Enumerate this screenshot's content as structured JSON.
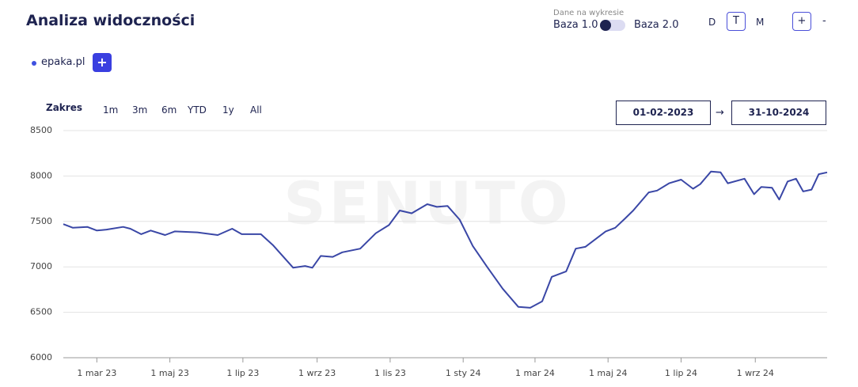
{
  "header": {
    "title": "Analiza widoczności",
    "data_source_label": "Dane na wykresie",
    "option_left": "Baza 1.0",
    "option_right": "Baza 2.0",
    "granularity": [
      "D",
      "T",
      "M"
    ],
    "zoom_in": "+",
    "zoom_out": "-"
  },
  "legend_add": "+",
  "range": {
    "label": "Zakres",
    "options": [
      "1m",
      "3m",
      "6m",
      "YTD",
      "1y",
      "All"
    ],
    "from": "01-02-2023",
    "to": "31-10-2024"
  },
  "watermark": "SENUTO",
  "chart_data": {
    "type": "line",
    "x": [
      "2023-02-01",
      "2023-02-09",
      "2023-02-21",
      "2023-03-01",
      "2023-03-09",
      "2023-03-23",
      "2023-03-29",
      "2023-04-07",
      "2023-04-15",
      "2023-04-27",
      "2023-05-05",
      "2023-05-24",
      "2023-06-10",
      "2023-06-22",
      "2023-06-30",
      "2023-07-16",
      "2023-07-26",
      "2023-08-12",
      "2023-08-22",
      "2023-08-28",
      "2023-09-04",
      "2023-09-14",
      "2023-09-22",
      "2023-10-07",
      "2023-10-20",
      "2023-10-31",
      "2023-11-09",
      "2023-11-19",
      "2023-12-02",
      "2023-12-10",
      "2023-12-19",
      "2023-12-29",
      "2024-01-09",
      "2024-01-21",
      "2024-02-03",
      "2024-02-16",
      "2024-02-26",
      "2024-03-07",
      "2024-03-15",
      "2024-03-27",
      "2024-04-04",
      "2024-04-12",
      "2024-04-29",
      "2024-05-07",
      "2024-05-15",
      "2024-05-22",
      "2024-06-04",
      "2024-06-11",
      "2024-06-21",
      "2024-07-01",
      "2024-07-11",
      "2024-07-17",
      "2024-07-26",
      "2024-08-03",
      "2024-08-09",
      "2024-08-23",
      "2024-08-31",
      "2024-09-06",
      "2024-09-15",
      "2024-09-21",
      "2024-09-28",
      "2024-10-05",
      "2024-10-11",
      "2024-10-18",
      "2024-10-24",
      "2024-10-31"
    ],
    "series": [
      {
        "name": "epaka.pl",
        "color": "#3a47a6",
        "values": [
          7470,
          7430,
          7440,
          7400,
          7410,
          7440,
          7420,
          7360,
          7400,
          7350,
          7390,
          7380,
          7350,
          7420,
          7360,
          7360,
          7240,
          6990,
          7010,
          6990,
          7120,
          7110,
          7160,
          7200,
          7370,
          7460,
          7620,
          7590,
          7690,
          7660,
          7670,
          7520,
          7230,
          7000,
          6760,
          6560,
          6550,
          6620,
          6890,
          6950,
          7200,
          7220,
          7390,
          7430,
          7530,
          7620,
          7820,
          7840,
          7920,
          7960,
          7860,
          7910,
          8050,
          8040,
          7920,
          7970,
          7800,
          7880,
          7870,
          7740,
          7940,
          7970,
          7830,
          7850,
          8020,
          8040
        ]
      }
    ],
    "xlim": [
      "2023-02-01",
      "2024-10-31"
    ],
    "xticks": [
      {
        "value": "2023-03-01",
        "label": "1 mar 23"
      },
      {
        "value": "2023-05-01",
        "label": "1 maj 23"
      },
      {
        "value": "2023-07-01",
        "label": "1 lip 23"
      },
      {
        "value": "2023-09-01",
        "label": "1 wrz 23"
      },
      {
        "value": "2023-11-01",
        "label": "1 lis 23"
      },
      {
        "value": "2024-01-01",
        "label": "1 sty 24"
      },
      {
        "value": "2024-03-01",
        "label": "1 mar 24"
      },
      {
        "value": "2024-05-01",
        "label": "1 maj 24"
      },
      {
        "value": "2024-07-01",
        "label": "1 lip 24"
      },
      {
        "value": "2024-09-01",
        "label": "1 wrz 24"
      }
    ],
    "ylim": [
      6000,
      8500
    ],
    "yticks": [
      6000,
      6500,
      7000,
      7500,
      8000,
      8500
    ],
    "grid": true
  }
}
